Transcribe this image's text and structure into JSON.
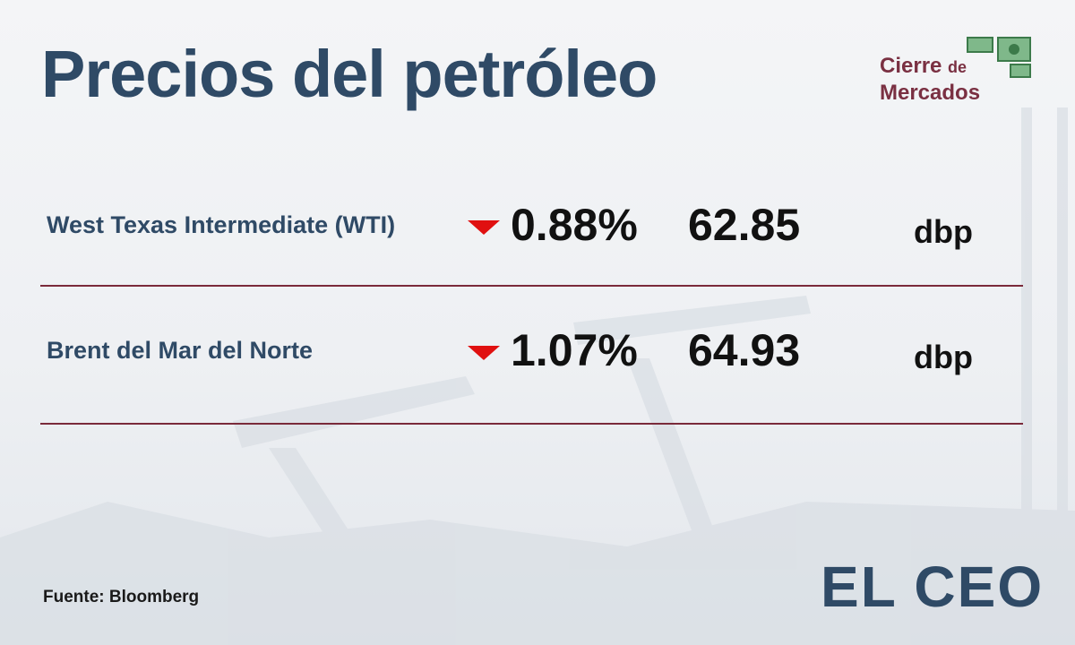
{
  "header": {
    "title": "Precios del petróleo",
    "badge": [
      "Cierre",
      "de",
      "Mercados"
    ]
  },
  "table": {
    "rows": [
      {
        "name": "West Texas Intermediate (WTI)",
        "change": "0.88%",
        "price": "62.85",
        "unit": "dbp"
      },
      {
        "name": "Brent del Mar del Norte",
        "change": "1.07%",
        "price": "64.93",
        "unit": "dbp"
      }
    ]
  },
  "footer": {
    "source": "Fuente: Bloomberg",
    "logo": "EL CEO"
  }
}
